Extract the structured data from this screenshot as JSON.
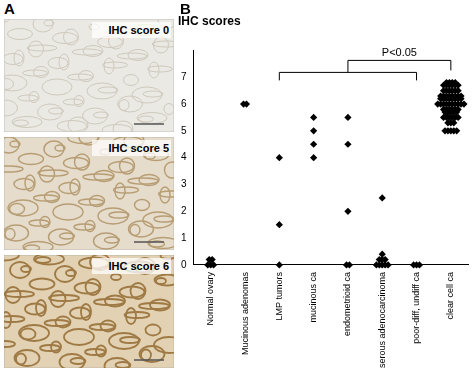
{
  "figure": {
    "panel_labels": [
      "A",
      "B"
    ],
    "micrographs": [
      "IHC score 0",
      "IHC score 5",
      "IHC score 6"
    ]
  },
  "chart_data": {
    "type": "scatter",
    "title": "IHC scores",
    "categories": [
      "Normal ovary",
      "Mucinous adenomas",
      "LMP tumors",
      "mucinous ca",
      "endometrioid ca",
      "serous adenocarcinoma",
      "poor-diff, undiff ca",
      "clear cell ca"
    ],
    "values": [
      [
        0.2,
        0.2,
        0,
        0,
        0
      ],
      [
        6,
        6
      ],
      [
        4,
        1.5,
        0
      ],
      [
        5.5,
        5,
        4.5,
        4
      ],
      [
        5.5,
        4.5,
        2,
        0,
        0
      ],
      [
        2.5,
        0.4,
        0.2,
        0.2,
        0.2,
        0,
        0,
        0,
        0,
        0
      ],
      [
        0,
        0,
        0
      ],
      [
        6.8,
        6.8,
        6.8,
        6.8,
        6.7,
        6.7,
        6.7,
        6.7,
        6.7,
        6.7,
        6.5,
        6.5,
        6.5,
        6.5,
        6.5,
        6.5,
        6.3,
        6.3,
        6.3,
        6.3,
        6.3,
        6.3,
        6.3,
        6.3,
        6.2,
        6.2,
        6.2,
        6.2,
        6.2,
        6.2,
        6.2,
        6.2,
        6,
        6,
        6,
        6,
        6,
        6,
        6,
        6,
        6,
        6,
        5.8,
        5.8,
        5.8,
        5.8,
        5.8,
        5.8,
        5.7,
        5.7,
        5.7,
        5.7,
        5.7,
        5.5,
        5.5,
        5.5,
        5.5,
        5.5,
        5.5,
        5.3,
        5.3,
        5.3,
        5,
        5,
        5,
        5,
        5
      ]
    ],
    "color": "#000000",
    "marker": "diamond",
    "ylim": [
      0,
      8
    ],
    "yticks": [
      0,
      1,
      2,
      3,
      4,
      5,
      6,
      7
    ],
    "grid": false,
    "annotations": [
      {
        "text": "P<0.05",
        "from": "LMP tumors",
        "to": "poor-diff, undiff ca",
        "versus": "clear cell ca"
      }
    ]
  }
}
